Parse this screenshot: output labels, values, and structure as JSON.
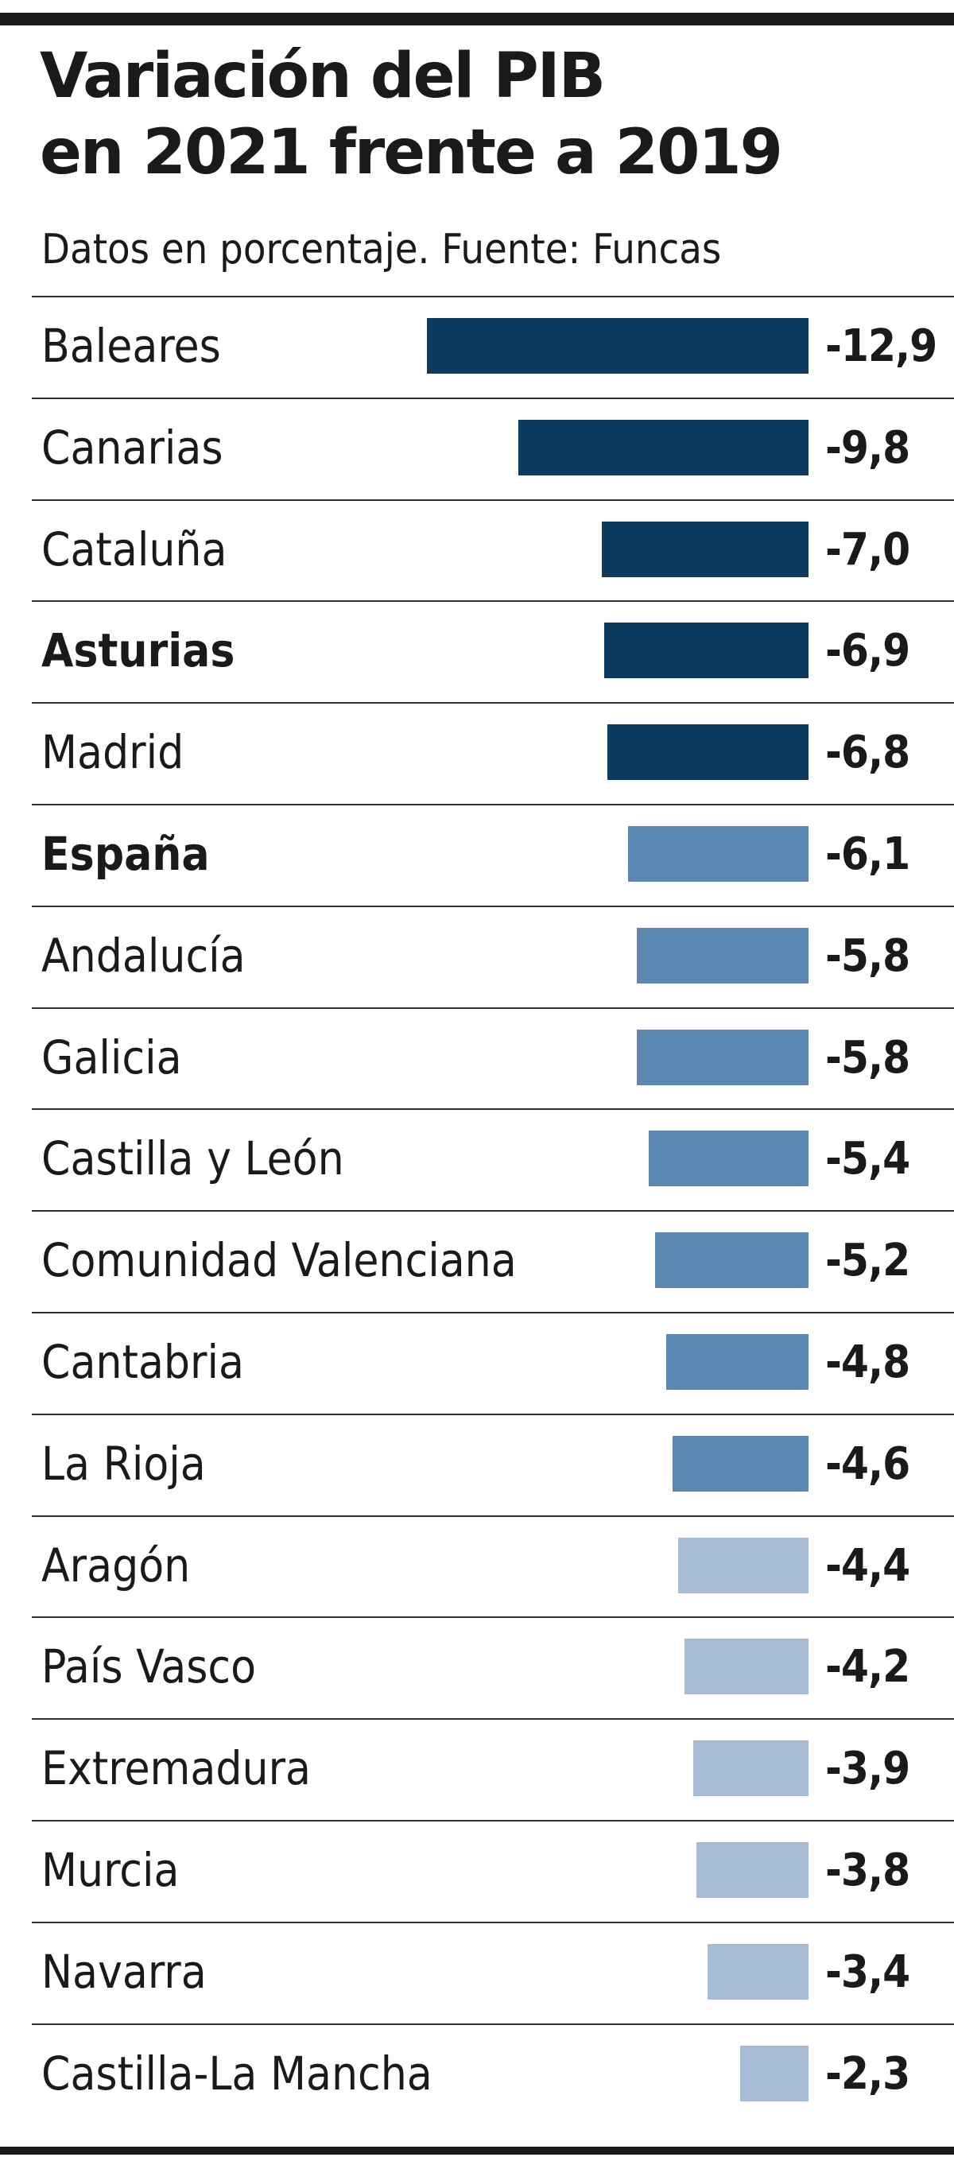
{
  "header": {
    "title_line1": "Variación del PIB",
    "title_line2": "en 2021 frente a 2019",
    "subtitle": "Datos en porcentaje. Fuente: Funcas"
  },
  "colors": {
    "dark": "#0b3b5e",
    "mid": "#5b87b0",
    "light": "#a7bdd6"
  },
  "chart_data": {
    "type": "bar",
    "orientation": "horizontal",
    "title": "Variación del PIB en 2021 frente a 2019",
    "subtitle": "Datos en porcentaje. Fuente: Funcas",
    "unit": "%",
    "categories": [
      "Baleares",
      "Canarias",
      "Cataluña",
      "Asturias",
      "Madrid",
      "España",
      "Andalucía",
      "Galicia",
      "Castilla y León",
      "Comunidad Valenciana",
      "Cantabria",
      "La Rioja",
      "Aragón",
      "País Vasco",
      "Extremadura",
      "Murcia",
      "Navarra",
      "Castilla-La Mancha"
    ],
    "values": [
      -12.9,
      -9.8,
      -7.0,
      -6.9,
      -6.8,
      -6.1,
      -5.8,
      -5.8,
      -5.4,
      -5.2,
      -4.8,
      -4.6,
      -4.4,
      -4.2,
      -3.9,
      -3.8,
      -3.4,
      -2.3
    ],
    "value_labels": [
      "-12,9",
      "-9,8",
      "-7,0",
      "-6,9",
      "-6,8",
      "-6,1",
      "-5,8",
      "-5,8",
      "-5,4",
      "-5,2",
      "-4,8",
      "-4,6",
      "-4,4",
      "-4,2",
      "-3,9",
      "-3,8",
      "-3,4",
      "-2,3"
    ],
    "color_groups": [
      "dark",
      "dark",
      "dark",
      "dark",
      "dark",
      "mid",
      "mid",
      "mid",
      "mid",
      "mid",
      "mid",
      "mid",
      "light",
      "light",
      "light",
      "light",
      "light",
      "light"
    ],
    "bold": [
      false,
      false,
      false,
      true,
      false,
      true,
      false,
      false,
      false,
      false,
      false,
      false,
      false,
      false,
      false,
      false,
      false,
      false
    ],
    "xlim": [
      -12.9,
      0
    ],
    "grid": false,
    "legend": "none"
  }
}
